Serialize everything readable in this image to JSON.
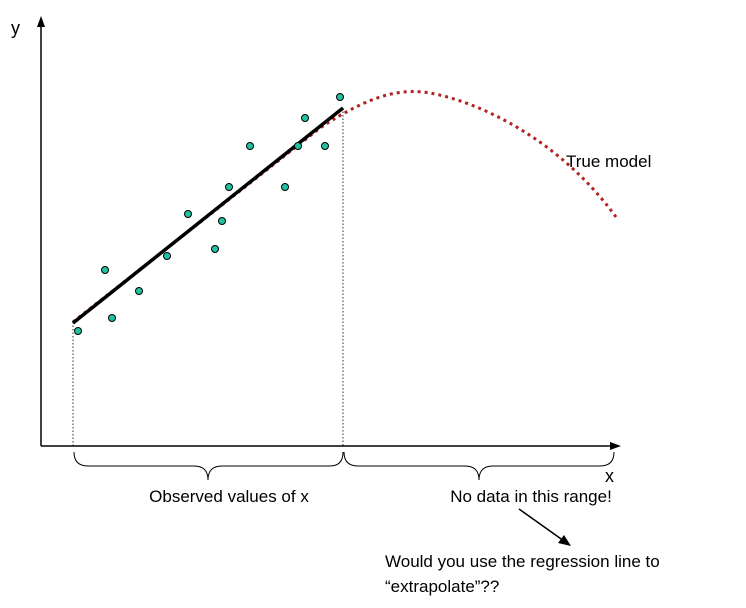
{
  "axes": {
    "x_label": "x",
    "y_label": "y"
  },
  "annotations": {
    "true_model": "True model",
    "observed_range": "Observed values of x",
    "no_data_range": "No data in this range!",
    "question_line1": "Would you use the regression line to",
    "question_line2": "“extrapolate”??"
  },
  "colors": {
    "points_fill": "#1fc3a3",
    "true_model_line": "#b22222",
    "regression_line": "#000000",
    "axes": "#000000"
  },
  "icons": {
    "axis_arrows": "arrowhead-icon",
    "pointer": "arrow-icon"
  }
}
